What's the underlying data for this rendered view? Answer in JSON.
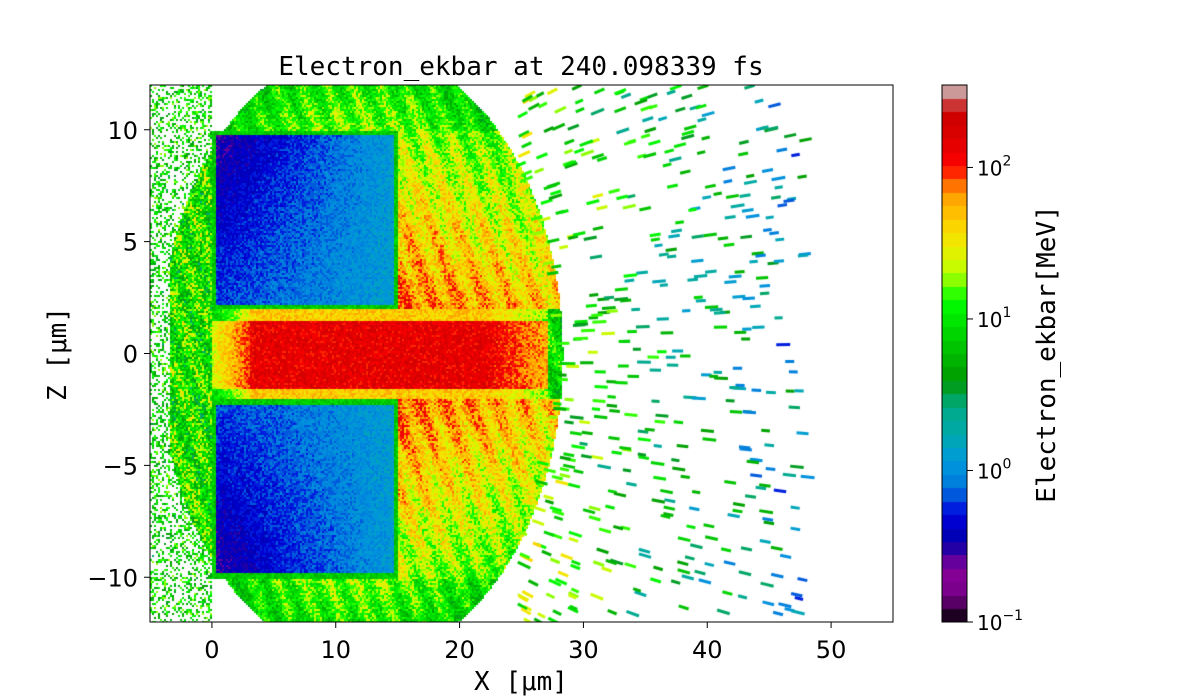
{
  "chart_data": {
    "type": "heatmap",
    "title": "Electron_ekbar at 240.098339 fs",
    "xlabel": "X [μm]",
    "ylabel": "Z [μm]",
    "xlim": [
      -5,
      55
    ],
    "ylim": [
      -12,
      12
    ],
    "xticks": [
      0,
      10,
      20,
      30,
      40,
      50
    ],
    "xtick_labels": [
      "0",
      "10",
      "20",
      "30",
      "40",
      "50"
    ],
    "yticks": [
      -10,
      -5,
      0,
      5,
      10
    ],
    "ytick_labels": [
      "−10",
      "−5",
      "0",
      "5",
      "10"
    ],
    "colorbar": {
      "label": "Electron_ekbar[MeV]",
      "scale": "log",
      "range": [
        0.1,
        350
      ],
      "ticks": [
        0.1,
        1,
        10,
        100
      ],
      "tick_bases": [
        "10",
        "10",
        "10",
        "10"
      ],
      "tick_exponents": [
        "−1",
        "0",
        "1",
        "2"
      ],
      "levels": 40,
      "colormap": "nipy_spectral"
    },
    "regions": [
      {
        "x": [
          0,
          15
        ],
        "z": [
          2,
          10
        ],
        "value_MeV": [
          0.3,
          1.0
        ]
      },
      {
        "x": [
          0,
          15
        ],
        "z": [
          -10,
          -2
        ],
        "value_MeV": [
          0.3,
          1.0
        ]
      },
      {
        "x": [
          0,
          27
        ],
        "z": [
          -2,
          2
        ],
        "value_MeV": [
          30,
          250
        ]
      },
      {
        "x": [
          -3,
          27
        ],
        "z": [
          -12,
          12
        ],
        "value_MeV": [
          5,
          60
        ]
      },
      {
        "x": [
          27,
          48
        ],
        "z": [
          -12,
          12
        ],
        "value_MeV": [
          0.3,
          10
        ]
      }
    ],
    "grid": false
  },
  "colors": {
    "cmap_stops": [
      "#000000",
      "#770088",
      "#880099",
      "#0000aa",
      "#0000dd",
      "#0077dd",
      "#0099dd",
      "#00aaaa",
      "#00aa88",
      "#009900",
      "#00bb00",
      "#00dd00",
      "#00ff00",
      "#bbff00",
      "#eeee00",
      "#ffcc00",
      "#ff9900",
      "#ff0000",
      "#dd0000",
      "#cc0000",
      "#cccccc"
    ]
  }
}
